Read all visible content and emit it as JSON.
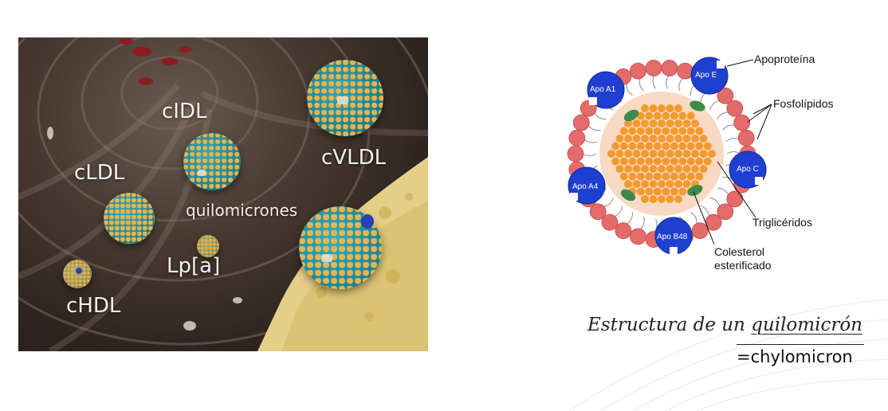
{
  "illustration": {
    "labels": {
      "cidl": "cIDL",
      "cvldl": "cVLDL",
      "cldl": "cLDL",
      "quilomicrones": "quilomicrones",
      "lpa": "Lp[a]",
      "chdl": "cHDL"
    },
    "colors": {
      "teal": "#1e9aa8",
      "orange": "#e3a23a",
      "wall": "#3b2f28",
      "fat": "#e8d48d"
    }
  },
  "schematic": {
    "callouts": {
      "apoproteina": "Apoproteína",
      "fosfolipidos": "Fosfolípidos",
      "trigliceridos": "Triglicéridos",
      "colesterol_1": "Colesterol",
      "colesterol_2": "esterificado"
    },
    "apoproteins": {
      "a1": "Apo A1",
      "e": "Apo E",
      "c": "Apo C",
      "a4": "Apo A4",
      "b48": "Apo B48"
    },
    "colors": {
      "phospholipid_head": "#e36b6b",
      "core": "#f7d9c4",
      "triglyceride": "#f29a2e",
      "cholesterol": "#3d8a4a",
      "apoprotein": "#1e3fd0"
    }
  },
  "caption": {
    "prefix": "Estructura de un ",
    "term": "quilomicrón",
    "translation": "=chylomicron"
  }
}
